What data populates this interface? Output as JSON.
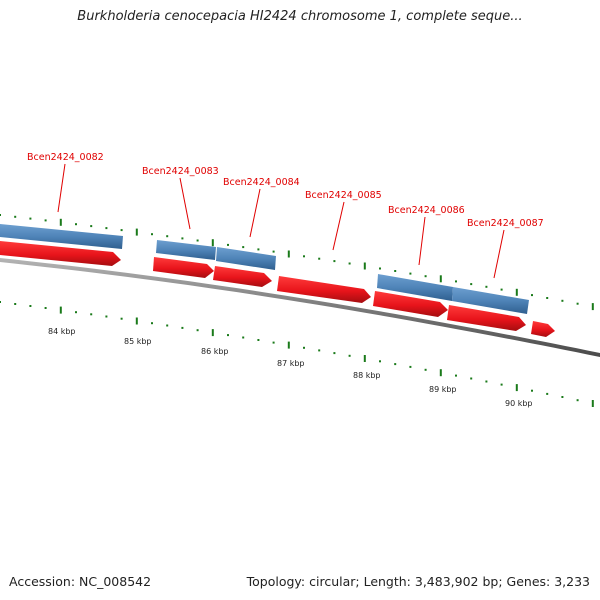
{
  "title": "Burkholderia cenocepacia HI2424 chromosome 1, complete seque...",
  "accession": "Accession: NC_008542",
  "summary": "Topology: circular; Length: 3,483,902 bp; Genes: 3,233",
  "colors": {
    "cds_forward": "#e8141b",
    "gene_forward": "#4f84b8",
    "backbone": "#8a8a8a",
    "tick": "#1a7a1a",
    "label": "#e00000"
  },
  "kbp_ticks": [
    "84 kbp",
    "85 kbp",
    "86 kbp",
    "87 kbp",
    "88 kbp",
    "89 kbp",
    "90 kbp"
  ],
  "genes": [
    {
      "label": "Bcen2424_0082"
    },
    {
      "label": "Bcen2424_0083"
    },
    {
      "label": "Bcen2424_0084"
    },
    {
      "label": "Bcen2424_0085"
    },
    {
      "label": "Bcen2424_0086"
    },
    {
      "label": "Bcen2424_0087"
    }
  ]
}
